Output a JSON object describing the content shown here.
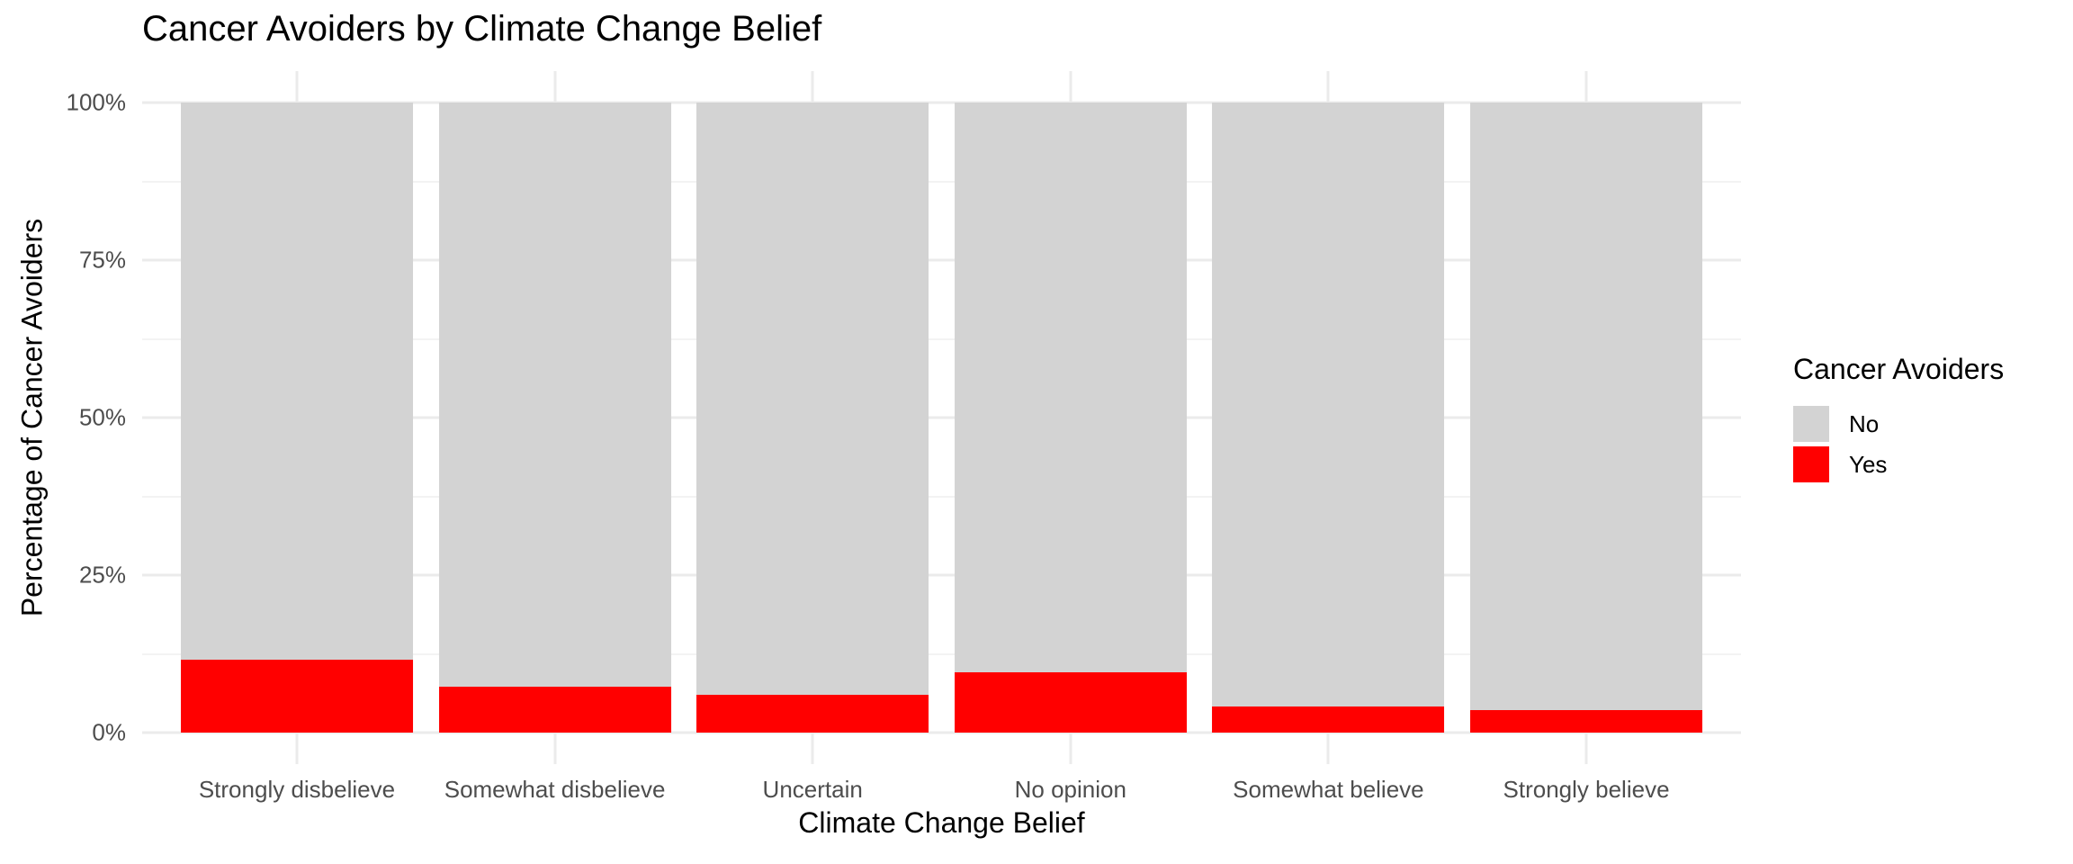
{
  "chart_data": {
    "type": "bar",
    "stacked": true,
    "units": "percent",
    "title": "Cancer Avoiders by Climate Change Belief",
    "xlabel": "Climate Change Belief",
    "ylabel": "Percentage of Cancer Avoiders",
    "categories": [
      "Strongly disbelieve",
      "Somewhat disbelieve",
      "Uncertain",
      "No opinion",
      "Somewhat believe",
      "Strongly believe"
    ],
    "series": [
      {
        "name": "No",
        "color": "#D3D3D3",
        "values": [
          88.5,
          92.7,
          94.0,
          90.5,
          95.8,
          96.5
        ]
      },
      {
        "name": "Yes",
        "color": "#FF0000",
        "values": [
          11.5,
          7.3,
          6.0,
          9.5,
          4.2,
          3.5
        ]
      }
    ],
    "ylim": [
      0,
      100
    ],
    "y_major_ticks": [
      {
        "value": 0,
        "label": "0%"
      },
      {
        "value": 25,
        "label": "25%"
      },
      {
        "value": 50,
        "label": "50%"
      },
      {
        "value": 75,
        "label": "75%"
      },
      {
        "value": 100,
        "label": "100%"
      }
    ],
    "y_minor_ticks": [
      12.5,
      37.5,
      62.5,
      87.5
    ],
    "grid": {
      "shown": true,
      "major_color": "#EBEBEB",
      "minor_color": "#F3F3F3"
    },
    "legend": {
      "title": "Cancer Avoiders",
      "position": "right",
      "entries": [
        {
          "label": "No",
          "color": "#D3D3D3"
        },
        {
          "label": "Yes",
          "color": "#FF0000"
        }
      ]
    },
    "axis_text_color": "#4D4D4D",
    "background_color": "#FFFFFF"
  }
}
